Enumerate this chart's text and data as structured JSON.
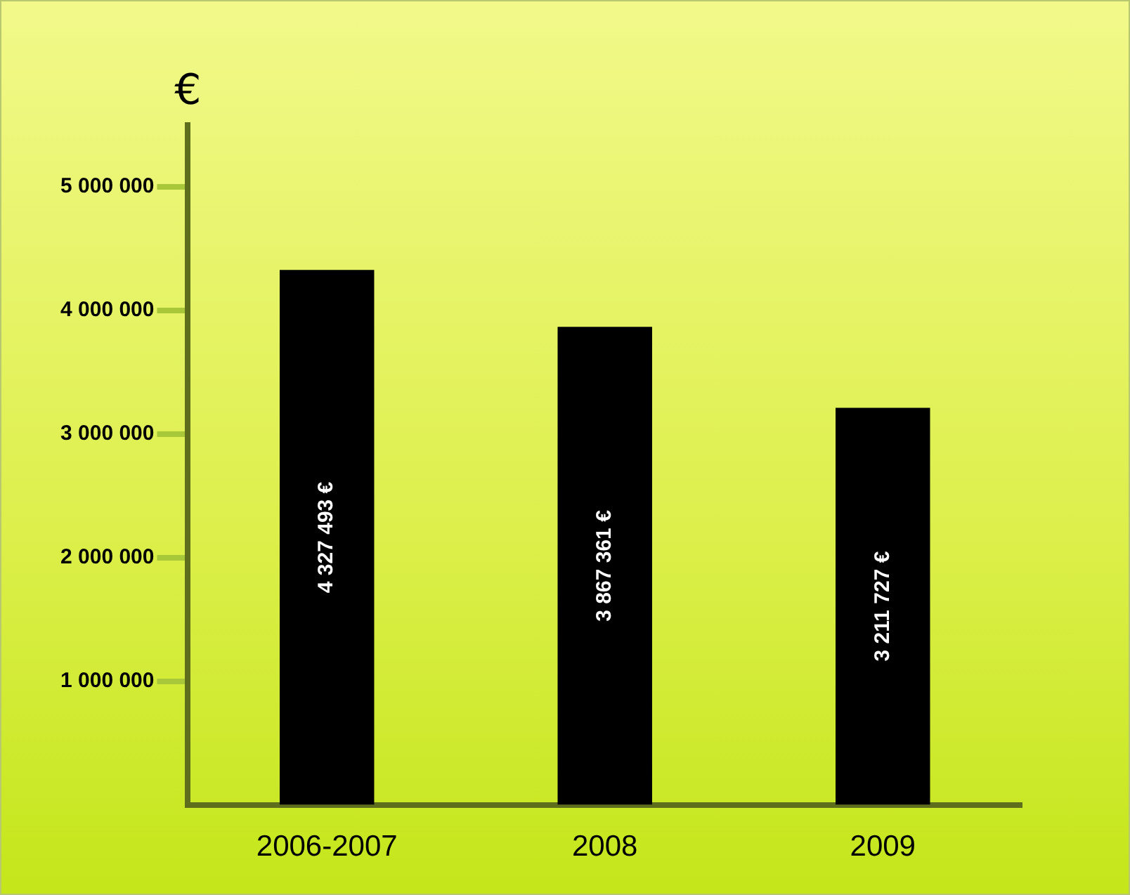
{
  "chart_data": {
    "type": "bar",
    "ylabel": "€",
    "categories": [
      "2006-2007",
      "2008",
      "2009"
    ],
    "values": [
      4327493,
      3867361,
      3211727
    ],
    "value_labels": [
      "4 327 493 €",
      "3 867 361 €",
      "3 211 727 €"
    ],
    "color": "#000000",
    "ylim": [
      0,
      5500000
    ],
    "yticks": [
      {
        "value": 1000000,
        "label": "1 000 000"
      },
      {
        "value": 2000000,
        "label": "2 000 000"
      },
      {
        "value": 3000000,
        "label": "3 000 000"
      },
      {
        "value": 4000000,
        "label": "4 000 000"
      },
      {
        "value": 5000000,
        "label": "5 000 000"
      }
    ],
    "grid": false,
    "legend": false
  }
}
